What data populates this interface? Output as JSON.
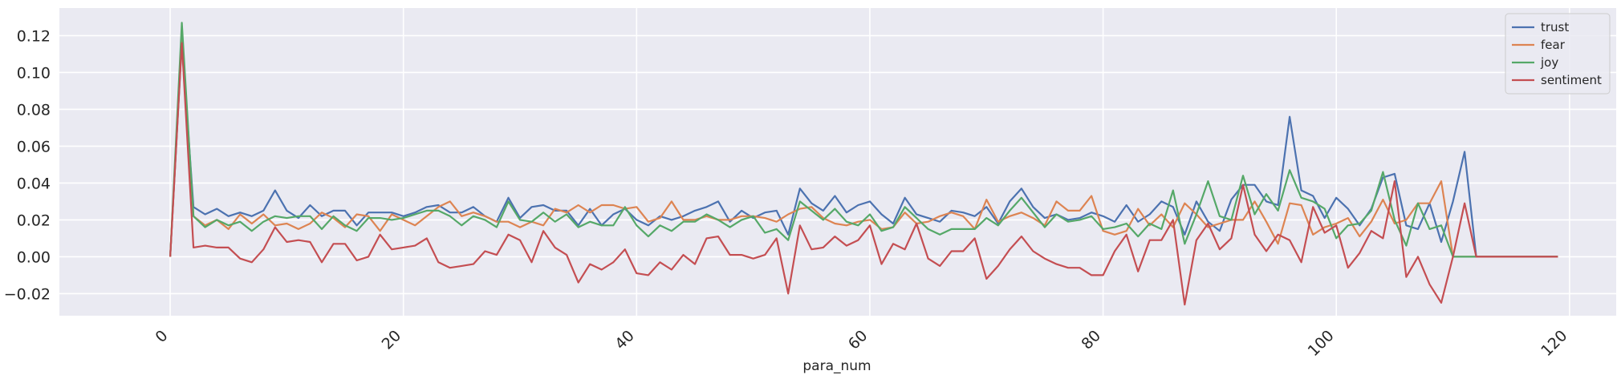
{
  "chart_data": {
    "type": "line",
    "title": "",
    "xlabel": "para_num",
    "ylabel": "",
    "xlim": [
      -9.5,
      124
    ],
    "ylim": [
      -0.032,
      0.135
    ],
    "grid": true,
    "legend_position": "top-right",
    "x_ticks": [
      0,
      20,
      40,
      60,
      80,
      100,
      120
    ],
    "x_tick_labels": [
      "0",
      "20",
      "40",
      "60",
      "80",
      "100",
      "120"
    ],
    "y_ticks": [
      -0.02,
      0.0,
      0.02,
      0.04,
      0.06,
      0.08,
      0.1,
      0.12
    ],
    "y_tick_labels": [
      "−0.02",
      "0.00",
      "0.02",
      "0.04",
      "0.06",
      "0.08",
      "0.10",
      "0.12"
    ],
    "x": [
      0,
      1,
      2,
      3,
      4,
      5,
      6,
      7,
      8,
      9,
      10,
      11,
      12,
      13,
      14,
      15,
      16,
      17,
      18,
      19,
      20,
      21,
      22,
      23,
      24,
      25,
      26,
      27,
      28,
      29,
      30,
      31,
      32,
      33,
      34,
      35,
      36,
      37,
      38,
      39,
      40,
      41,
      42,
      43,
      44,
      45,
      46,
      47,
      48,
      49,
      50,
      51,
      52,
      53,
      54,
      55,
      56,
      57,
      58,
      59,
      60,
      61,
      62,
      63,
      64,
      65,
      66,
      67,
      68,
      69,
      70,
      71,
      72,
      73,
      74,
      75,
      76,
      77,
      78,
      79,
      80,
      81,
      82,
      83,
      84,
      85,
      86,
      87,
      88,
      89,
      90,
      91,
      92,
      93,
      94,
      95,
      96,
      97,
      98,
      99,
      100,
      101,
      102,
      103,
      104,
      105,
      106,
      107,
      108,
      109,
      110,
      111,
      112,
      113,
      114,
      115,
      116,
      117,
      118,
      119
    ],
    "series": [
      {
        "name": "trust",
        "color": "#4c72b0",
        "values": [
          0.0,
          0.117,
          0.027,
          0.023,
          0.026,
          0.022,
          0.024,
          0.022,
          0.025,
          0.036,
          0.025,
          0.021,
          0.028,
          0.022,
          0.025,
          0.025,
          0.017,
          0.024,
          0.024,
          0.024,
          0.022,
          0.024,
          0.027,
          0.028,
          0.024,
          0.024,
          0.027,
          0.022,
          0.019,
          0.032,
          0.021,
          0.027,
          0.028,
          0.025,
          0.025,
          0.017,
          0.026,
          0.017,
          0.023,
          0.026,
          0.02,
          0.017,
          0.022,
          0.02,
          0.022,
          0.025,
          0.027,
          0.03,
          0.019,
          0.025,
          0.021,
          0.024,
          0.025,
          0.012,
          0.037,
          0.029,
          0.025,
          0.033,
          0.024,
          0.028,
          0.03,
          0.023,
          0.018,
          0.032,
          0.023,
          0.021,
          0.019,
          0.025,
          0.024,
          0.022,
          0.027,
          0.018,
          0.03,
          0.037,
          0.027,
          0.021,
          0.023,
          0.02,
          0.021,
          0.024,
          0.022,
          0.019,
          0.028,
          0.019,
          0.023,
          0.03,
          0.027,
          0.012,
          0.03,
          0.019,
          0.014,
          0.031,
          0.039,
          0.039,
          0.03,
          0.028,
          0.076,
          0.036,
          0.033,
          0.021,
          0.032,
          0.026,
          0.017,
          0.026,
          0.043,
          0.045,
          0.017,
          0.015,
          0.029,
          0.008,
          0.03,
          0.057,
          0.0,
          0.0,
          0.0,
          0.0,
          0.0,
          0.0,
          0.0,
          0.0
        ]
      },
      {
        "name": "fear",
        "color": "#dd8452",
        "values": [
          0.0,
          0.118,
          0.022,
          0.017,
          0.02,
          0.015,
          0.023,
          0.018,
          0.023,
          0.017,
          0.018,
          0.015,
          0.018,
          0.024,
          0.021,
          0.016,
          0.023,
          0.022,
          0.014,
          0.023,
          0.02,
          0.017,
          0.022,
          0.027,
          0.03,
          0.022,
          0.024,
          0.022,
          0.019,
          0.019,
          0.016,
          0.019,
          0.017,
          0.026,
          0.024,
          0.028,
          0.024,
          0.028,
          0.028,
          0.026,
          0.027,
          0.019,
          0.021,
          0.03,
          0.02,
          0.02,
          0.022,
          0.02,
          0.02,
          0.022,
          0.022,
          0.021,
          0.019,
          0.023,
          0.026,
          0.027,
          0.021,
          0.018,
          0.017,
          0.019,
          0.02,
          0.015,
          0.016,
          0.024,
          0.018,
          0.019,
          0.022,
          0.024,
          0.022,
          0.015,
          0.031,
          0.019,
          0.022,
          0.024,
          0.021,
          0.017,
          0.03,
          0.025,
          0.025,
          0.033,
          0.014,
          0.012,
          0.014,
          0.026,
          0.017,
          0.023,
          0.016,
          0.029,
          0.023,
          0.016,
          0.018,
          0.02,
          0.02,
          0.03,
          0.019,
          0.007,
          0.029,
          0.028,
          0.012,
          0.016,
          0.018,
          0.021,
          0.011,
          0.019,
          0.031,
          0.018,
          0.02,
          0.029,
          0.029,
          0.041,
          0.0,
          0.0,
          0.0,
          0.0,
          0.0,
          0.0,
          0.0,
          0.0,
          0.0,
          0.0
        ]
      },
      {
        "name": "joy",
        "color": "#55a868",
        "values": [
          0.0,
          0.127,
          0.022,
          0.016,
          0.02,
          0.017,
          0.019,
          0.014,
          0.019,
          0.022,
          0.021,
          0.022,
          0.022,
          0.015,
          0.022,
          0.017,
          0.014,
          0.021,
          0.021,
          0.02,
          0.021,
          0.023,
          0.025,
          0.025,
          0.022,
          0.017,
          0.022,
          0.02,
          0.016,
          0.03,
          0.02,
          0.019,
          0.024,
          0.019,
          0.023,
          0.016,
          0.019,
          0.017,
          0.017,
          0.027,
          0.017,
          0.011,
          0.017,
          0.014,
          0.019,
          0.019,
          0.023,
          0.02,
          0.016,
          0.02,
          0.022,
          0.013,
          0.015,
          0.009,
          0.03,
          0.025,
          0.02,
          0.026,
          0.019,
          0.017,
          0.023,
          0.014,
          0.016,
          0.027,
          0.021,
          0.015,
          0.012,
          0.015,
          0.015,
          0.015,
          0.021,
          0.017,
          0.025,
          0.032,
          0.024,
          0.016,
          0.023,
          0.019,
          0.02,
          0.022,
          0.015,
          0.016,
          0.018,
          0.011,
          0.018,
          0.015,
          0.036,
          0.007,
          0.023,
          0.041,
          0.022,
          0.02,
          0.044,
          0.023,
          0.034,
          0.025,
          0.047,
          0.032,
          0.03,
          0.026,
          0.01,
          0.017,
          0.018,
          0.025,
          0.046,
          0.02,
          0.006,
          0.029,
          0.015,
          0.017,
          0.0,
          0.0,
          0.0,
          0.0,
          0.0,
          0.0,
          0.0,
          0.0,
          0.0,
          0.0
        ]
      },
      {
        "name": "sentiment",
        "color": "#c44e52",
        "values": [
          0.0,
          0.116,
          0.005,
          0.006,
          0.005,
          0.005,
          -0.001,
          -0.003,
          0.004,
          0.016,
          0.008,
          0.009,
          0.008,
          -0.003,
          0.007,
          0.007,
          -0.002,
          0.0,
          0.012,
          0.004,
          0.005,
          0.006,
          0.01,
          -0.003,
          -0.006,
          -0.005,
          -0.004,
          0.003,
          0.001,
          0.012,
          0.009,
          -0.003,
          0.014,
          0.005,
          0.001,
          -0.014,
          -0.004,
          -0.007,
          -0.003,
          0.004,
          -0.009,
          -0.01,
          -0.003,
          -0.007,
          0.001,
          -0.004,
          0.01,
          0.011,
          0.001,
          0.001,
          -0.001,
          0.001,
          0.01,
          -0.02,
          0.017,
          0.004,
          0.005,
          0.011,
          0.006,
          0.009,
          0.017,
          -0.004,
          0.007,
          0.004,
          0.018,
          -0.001,
          -0.005,
          0.003,
          0.003,
          0.01,
          -0.012,
          -0.005,
          0.004,
          0.011,
          0.003,
          -0.001,
          -0.004,
          -0.006,
          -0.006,
          -0.01,
          -0.01,
          0.003,
          0.012,
          -0.008,
          0.009,
          0.009,
          0.02,
          -0.026,
          0.009,
          0.018,
          0.004,
          0.01,
          0.039,
          0.012,
          0.003,
          0.012,
          0.009,
          -0.003,
          0.027,
          0.013,
          0.017,
          -0.006,
          0.002,
          0.014,
          0.01,
          0.041,
          -0.011,
          0.0,
          -0.015,
          -0.025,
          0.0,
          0.029,
          0.0,
          0.0,
          0.0,
          0.0,
          0.0,
          0.0,
          0.0,
          0.0
        ]
      }
    ]
  }
}
